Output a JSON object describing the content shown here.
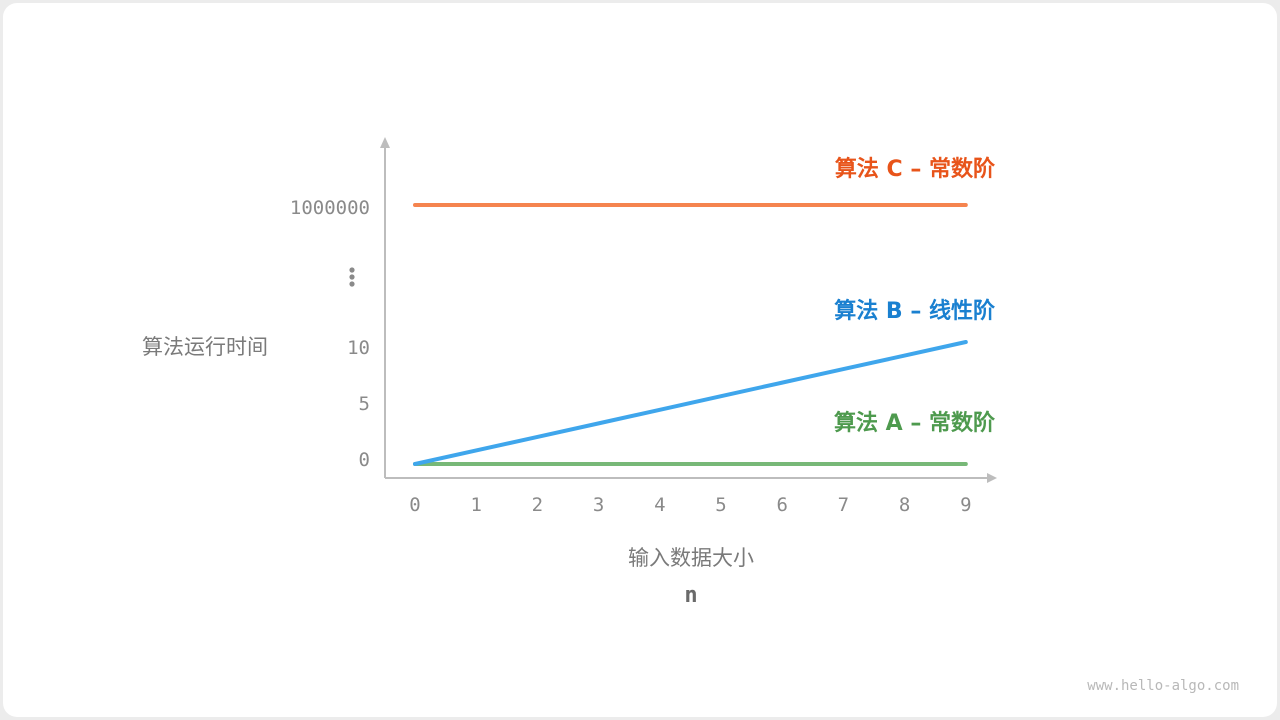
{
  "chart_data": {
    "type": "line",
    "ylabel": "算法运行时间",
    "xlabel": "输入数据大小",
    "xlabel_var": "n",
    "x": [
      0,
      1,
      2,
      3,
      4,
      5,
      6,
      7,
      8,
      9
    ],
    "x_tick_labels": [
      "0",
      "1",
      "2",
      "3",
      "4",
      "5",
      "6",
      "7",
      "8",
      "9"
    ],
    "y_tick_labels": [
      "0",
      "5",
      "10",
      "⋮",
      "1000000"
    ],
    "y_axis_broken": true,
    "grid": false,
    "series": [
      {
        "name": "算法 A – 常数阶",
        "color": "#4e9a4e",
        "line_color": "#77b877",
        "values": [
          0,
          0,
          0,
          0,
          0,
          0,
          0,
          0,
          0,
          0
        ]
      },
      {
        "name": "算法 B – 线性阶",
        "color": "#1a80d0",
        "line_color": "#3fa6ec",
        "values": [
          0,
          1.11,
          2.22,
          3.33,
          4.44,
          5.56,
          6.67,
          7.78,
          8.89,
          10
        ]
      },
      {
        "name": "算法 C – 常数阶",
        "color": "#e8541a",
        "line_color": "#f5844f",
        "values": [
          1000000,
          1000000,
          1000000,
          1000000,
          1000000,
          1000000,
          1000000,
          1000000,
          1000000,
          1000000
        ]
      }
    ]
  },
  "watermark": "www.hello-algo.com"
}
